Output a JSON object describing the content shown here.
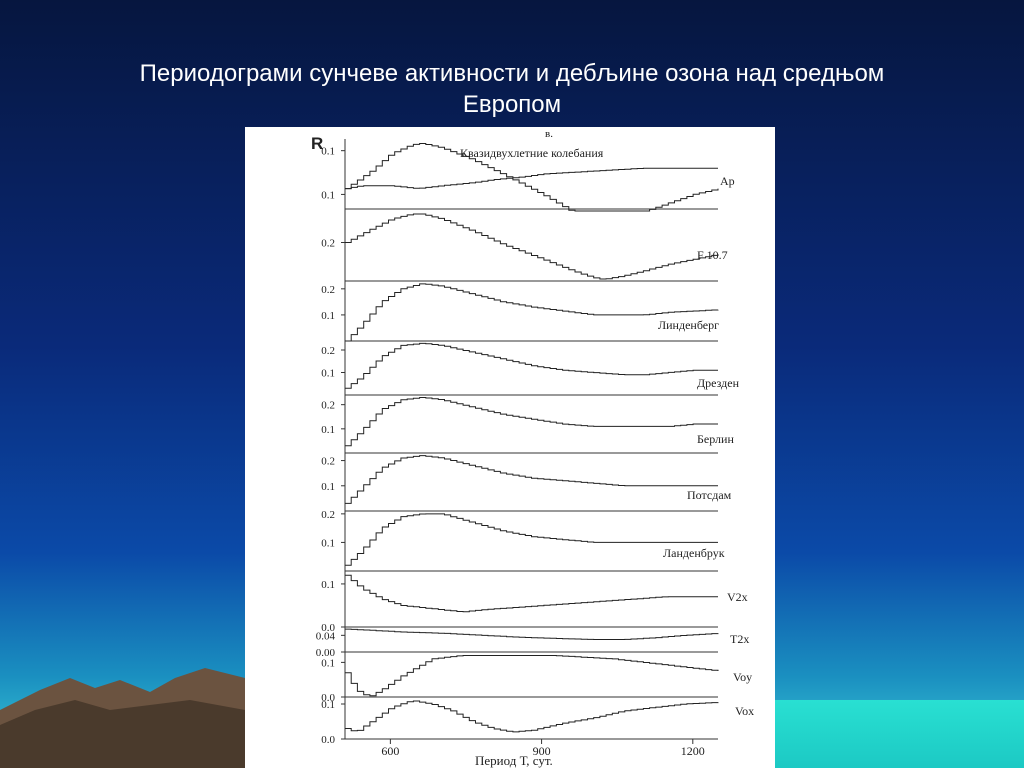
{
  "slide": {
    "title_line1": "Периодограми сунчеве активности и дебљине озона над средњом",
    "title_line2": "Европом"
  },
  "chart_data": {
    "type": "line",
    "ylabel": "R",
    "panel_label": "в.",
    "xlabel": "Период Т, сут.",
    "xlim": [
      510,
      1250
    ],
    "xticks": [
      600,
      900,
      1200
    ],
    "panels": [
      {
        "name": "Квазидвухлетние колебания + Ap",
        "tick_labels": [
          "0.1",
          "0.1"
        ],
        "series": [
          {
            "name": "Квазидвухлетние колебания",
            "x": [
              510,
              560,
              600,
              640,
              660,
              700,
              760,
              820,
              900,
              960,
              1000,
              1020,
              1060,
              1100,
              1150,
              1200,
              1250
            ],
            "y": [
              0.02,
              0.08,
              0.14,
              0.17,
              0.175,
              0.16,
              0.12,
              0.07,
              0.0,
              -0.06,
              -0.1,
              -0.11,
              -0.09,
              -0.06,
              -0.03,
              0.0,
              0.02
            ]
          },
          {
            "name": "Ap",
            "x": [
              510,
              540,
              600,
              650,
              700,
              760,
              800,
              860,
              900,
              950,
              1000,
              1050,
              1100,
              1150,
              1200,
              1250
            ],
            "y": [
              0.02,
              0.03,
              0.03,
              0.02,
              0.03,
              0.04,
              0.05,
              0.06,
              0.07,
              0.075,
              0.08,
              0.085,
              0.09,
              0.09,
              0.09,
              0.09
            ]
          }
        ]
      },
      {
        "name": "F 10.7",
        "tick_labels": [
          "0.2"
        ],
        "series": [
          {
            "name": "F 10.7",
            "x": [
              510,
              560,
              600,
              640,
              660,
              700,
              760,
              820,
              900,
              960,
              1000,
              1020,
              1060,
              1100,
              1150,
              1200,
              1250
            ],
            "y": [
              0.2,
              0.28,
              0.34,
              0.37,
              0.37,
              0.34,
              0.27,
              0.19,
              0.1,
              0.03,
              -0.01,
              -0.02,
              0.0,
              0.03,
              0.07,
              0.1,
              0.13
            ]
          }
        ]
      },
      {
        "name": "Линденберг",
        "tick_labels": [
          "0.2",
          "0.1"
        ],
        "series": [
          {
            "name": "Линденберг",
            "x": [
              510,
              540,
              580,
              620,
              660,
              700,
              760,
              820,
              880,
              940,
              1000,
              1060,
              1100,
              1150,
              1200,
              1250
            ],
            "y": [
              0.0,
              0.06,
              0.15,
              0.2,
              0.22,
              0.21,
              0.18,
              0.15,
              0.13,
              0.115,
              0.1,
              0.1,
              0.1,
              0.11,
              0.115,
              0.12
            ]
          }
        ]
      },
      {
        "name": "Дрезден",
        "tick_labels": [
          "0.2",
          "0.1"
        ],
        "series": [
          {
            "name": "Дрезден",
            "x": [
              510,
              540,
              580,
              620,
              660,
              700,
              760,
              820,
              880,
              940,
              1000,
              1060,
              1100,
              1150,
              1200,
              1250
            ],
            "y": [
              0.03,
              0.08,
              0.17,
              0.22,
              0.23,
              0.22,
              0.19,
              0.16,
              0.13,
              0.11,
              0.1,
              0.09,
              0.09,
              0.1,
              0.11,
              0.11
            ]
          }
        ]
      },
      {
        "name": "Берлин",
        "tick_labels": [
          "0.2",
          "0.1"
        ],
        "series": [
          {
            "name": "Берлин",
            "x": [
              510,
              540,
              580,
              620,
              660,
              700,
              760,
              820,
              880,
              940,
              1000,
              1060,
              1100,
              1150,
              1200,
              1250
            ],
            "y": [
              0.03,
              0.09,
              0.18,
              0.22,
              0.23,
              0.22,
              0.19,
              0.16,
              0.14,
              0.12,
              0.11,
              0.11,
              0.11,
              0.11,
              0.12,
              0.12
            ]
          }
        ]
      },
      {
        "name": "Потсдам",
        "tick_labels": [
          "0.2",
          "0.1"
        ],
        "series": [
          {
            "name": "Потсдам",
            "x": [
              510,
              540,
              580,
              620,
              660,
              700,
              760,
              820,
              880,
              940,
              1000,
              1060,
              1100,
              1150,
              1200,
              1250
            ],
            "y": [
              0.03,
              0.09,
              0.17,
              0.21,
              0.22,
              0.21,
              0.18,
              0.15,
              0.13,
              0.12,
              0.11,
              0.1,
              0.1,
              0.1,
              0.1,
              0.1
            ]
          }
        ]
      },
      {
        "name": "Ланденбрук",
        "tick_labels": [
          "0.2",
          "0.1"
        ],
        "series": [
          {
            "name": "Ланденбрук",
            "x": [
              510,
              540,
              580,
              620,
              660,
              700,
              760,
              820,
              880,
              940,
              1000,
              1060,
              1100,
              1150,
              1200,
              1250
            ],
            "y": [
              0.02,
              0.07,
              0.15,
              0.19,
              0.2,
              0.2,
              0.17,
              0.14,
              0.12,
              0.11,
              0.1,
              0.1,
              0.1,
              0.1,
              0.1,
              0.1
            ]
          }
        ]
      },
      {
        "name": "V2x",
        "tick_labels": [
          "0.1",
          "0.0"
        ],
        "series": [
          {
            "name": "V2x",
            "x": [
              510,
              540,
              580,
              620,
              660,
              700,
              740,
              780,
              840,
              900,
              960,
              1020,
              1080,
              1140,
              1200,
              1250
            ],
            "y": [
              0.12,
              0.09,
              0.065,
              0.05,
              0.045,
              0.04,
              0.035,
              0.04,
              0.045,
              0.05,
              0.055,
              0.06,
              0.065,
              0.07,
              0.07,
              0.07
            ]
          }
        ]
      },
      {
        "name": "T2x",
        "tick_labels": [
          "0.04",
          "0.00"
        ],
        "series": [
          {
            "name": "T2x",
            "x": [
              510,
              560,
              620,
              700,
              780,
              860,
              940,
              1000,
              1060,
              1120,
              1180,
              1250
            ],
            "y": [
              0.055,
              0.052,
              0.048,
              0.045,
              0.04,
              0.035,
              0.032,
              0.03,
              0.03,
              0.034,
              0.04,
              0.045
            ]
          }
        ]
      },
      {
        "name": "Voy",
        "tick_labels": [
          "0.1",
          "0.0"
        ],
        "series": [
          {
            "name": "Voy",
            "x": [
              510,
              530,
              555,
              580,
              620,
              680,
              740,
              800,
              860,
              920,
              980,
              1040,
              1100,
              1160,
              1220,
              1250
            ],
            "y": [
              0.07,
              0.02,
              0.0,
              0.02,
              0.06,
              0.11,
              0.12,
              0.12,
              0.12,
              0.12,
              0.115,
              0.11,
              0.1,
              0.09,
              0.08,
              0.075
            ]
          }
        ]
      },
      {
        "name": "Vox",
        "tick_labels": [
          "0.1",
          "0.0"
        ],
        "series": [
          {
            "name": "Vox",
            "x": [
              510,
              530,
              560,
              600,
              640,
              680,
              720,
              760,
              800,
              840,
              880,
              940,
              1000,
              1060,
              1120,
              1180,
              1250
            ],
            "y": [
              0.03,
              0.02,
              0.05,
              0.09,
              0.11,
              0.1,
              0.08,
              0.05,
              0.03,
              0.02,
              0.025,
              0.045,
              0.06,
              0.08,
              0.09,
              0.1,
              0.105
            ]
          }
        ]
      }
    ]
  }
}
